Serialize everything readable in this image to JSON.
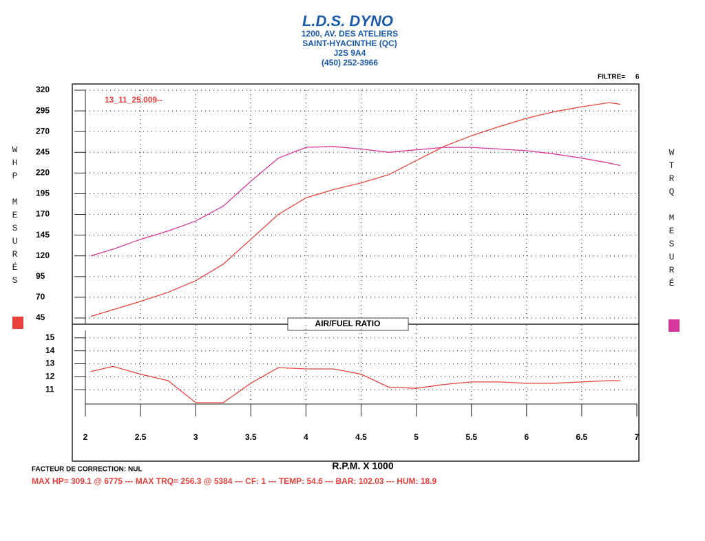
{
  "header": {
    "title": "L.D.S. DYNO",
    "lines": [
      "1200, AV. DES ATELIERS",
      "SAINT-HYACINTHE (QC)",
      "J2S 9A4",
      "(450) 252-3966"
    ]
  },
  "filter_label": "FILTRE=",
  "filter_value": 6,
  "chart_data": [
    {
      "type": "line",
      "run_label": "13_11_25.009--",
      "x": [
        2.05,
        2.25,
        2.5,
        2.75,
        3.0,
        3.25,
        3.5,
        3.75,
        4.0,
        4.25,
        4.5,
        4.75,
        5.0,
        5.25,
        5.5,
        5.75,
        6.0,
        6.25,
        6.5,
        6.75,
        6.85
      ],
      "series": [
        {
          "name": "WHP MESURÉS",
          "color": "#e8413c",
          "values": [
            47,
            55,
            65,
            76,
            90,
            110,
            140,
            170,
            190,
            200,
            208,
            218,
            235,
            252,
            265,
            276,
            286,
            294,
            300,
            305,
            303
          ]
        },
        {
          "name": "WTRQ MESURÉ",
          "color": "#d6379a",
          "values": [
            120,
            128,
            140,
            150,
            162,
            180,
            210,
            238,
            251,
            252,
            249,
            245,
            248,
            251,
            251,
            249,
            247,
            243,
            238,
            232,
            229
          ]
        }
      ],
      "xlim": [
        2,
        7
      ],
      "ylim": [
        45,
        320
      ],
      "yticks": [
        45,
        70,
        95,
        120,
        145,
        170,
        195,
        220,
        245,
        270,
        295,
        320
      ],
      "grid": true
    },
    {
      "type": "line",
      "title": "AIR/FUEL RATIO",
      "x_label": "R.P.M. X 1000",
      "x": [
        2.05,
        2.25,
        2.5,
        2.75,
        3.0,
        3.25,
        3.5,
        3.75,
        4.0,
        4.25,
        4.5,
        4.75,
        5.0,
        5.25,
        5.5,
        5.75,
        6.0,
        6.25,
        6.5,
        6.75,
        6.85
      ],
      "series": [
        {
          "color": "#e8413c",
          "values": [
            12.4,
            12.8,
            12.2,
            11.7,
            10,
            10,
            11.5,
            12.7,
            12.6,
            12.6,
            12.2,
            11.2,
            11.1,
            11.4,
            11.6,
            11.6,
            11.5,
            11.5,
            11.6,
            11.7,
            11.7
          ]
        }
      ],
      "xlim": [
        2,
        7
      ],
      "xticks": [
        2,
        2.5,
        3,
        3.5,
        4,
        4.5,
        5,
        5.5,
        6,
        6.5,
        7
      ],
      "ylim": [
        10,
        16
      ],
      "yticks": [
        11,
        12,
        13,
        14,
        15
      ],
      "grid": true
    }
  ],
  "footer": {
    "correction": "FACTEUR DE CORRECTION: NUL",
    "summary": "MAX HP=  309.1 @ 6775  ---  MAX TRQ=  256.3 @  5384  ---  CF: 1  ---  TEMP: 54.6  ---  BAR: 102.03  ---  HUM: 18.9"
  }
}
